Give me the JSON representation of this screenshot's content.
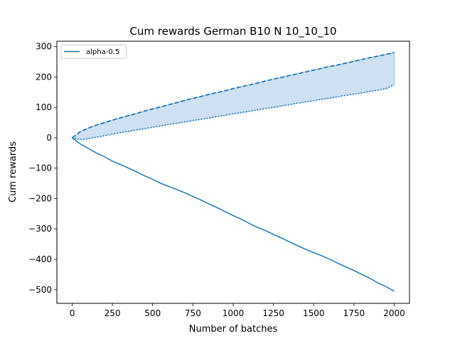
{
  "chart_data": {
    "type": "line",
    "title": "Cum rewards German B10 N 10_10_10",
    "xlabel": "Number of batches",
    "ylabel": "Cum rewards",
    "xlim": [
      -95,
      2095
    ],
    "ylim": [
      -545,
      318
    ],
    "xticks": [
      0,
      250,
      500,
      750,
      1000,
      1250,
      1500,
      1750,
      2000
    ],
    "yticks": [
      -500,
      -400,
      -300,
      -200,
      -100,
      0,
      100,
      200,
      300
    ],
    "grid": false,
    "legend_position": "top-left",
    "color": "#1f77b4",
    "fill_color": "#c6dbef",
    "series": [
      {
        "name": "alpha-0.5",
        "style": "solid",
        "x": [
          0,
          50,
          100,
          150,
          200,
          250,
          300,
          350,
          400,
          450,
          500,
          550,
          600,
          650,
          700,
          750,
          800,
          850,
          900,
          950,
          1000,
          1050,
          1100,
          1150,
          1200,
          1250,
          1300,
          1350,
          1400,
          1450,
          1500,
          1550,
          1600,
          1650,
          1700,
          1750,
          1800,
          1850,
          1900,
          1950,
          2000
        ],
        "values": [
          0,
          -20,
          -35,
          -50,
          -62,
          -77,
          -88,
          -100,
          -112,
          -125,
          -137,
          -150,
          -160,
          -170,
          -181,
          -193,
          -205,
          -218,
          -230,
          -243,
          -256,
          -268,
          -282,
          -295,
          -305,
          -318,
          -330,
          -343,
          -355,
          -367,
          -378,
          -388,
          -400,
          -413,
          -425,
          -437,
          -450,
          -463,
          -478,
          -490,
          -505
        ]
      },
      {
        "style": "dashed",
        "x": [
          0,
          50,
          100,
          150,
          200,
          250,
          300,
          350,
          400,
          450,
          500,
          550,
          600,
          650,
          700,
          750,
          800,
          850,
          900,
          950,
          1000,
          1050,
          1100,
          1150,
          1200,
          1250,
          1300,
          1350,
          1400,
          1450,
          1500,
          1550,
          1600,
          1650,
          1700,
          1750,
          1800,
          1850,
          1900,
          1950,
          2000
        ],
        "values": [
          0,
          20,
          32,
          42,
          50,
          58,
          66,
          73,
          80,
          88,
          95,
          102,
          109,
          116,
          123,
          130,
          136,
          143,
          149,
          155,
          162,
          168,
          174,
          180,
          187,
          193,
          199,
          205,
          211,
          217,
          223,
          229,
          235,
          240,
          246,
          252,
          258,
          264,
          269,
          275,
          281
        ]
      },
      {
        "style": "dotted",
        "x": [
          0,
          50,
          100,
          150,
          200,
          250,
          300,
          350,
          400,
          450,
          500,
          550,
          600,
          650,
          700,
          750,
          800,
          850,
          900,
          950,
          1000,
          1050,
          1100,
          1150,
          1200,
          1250,
          1300,
          1350,
          1400,
          1450,
          1500,
          1550,
          1600,
          1650,
          1700,
          1750,
          1800,
          1850,
          1900,
          1950,
          2000
        ],
        "values": [
          0,
          -6,
          -3,
          2,
          7,
          12,
          17,
          21,
          26,
          30,
          35,
          39,
          44,
          48,
          52,
          57,
          61,
          65,
          70,
          74,
          79,
          83,
          87,
          92,
          96,
          100,
          105,
          109,
          114,
          118,
          122,
          127,
          131,
          135,
          140,
          144,
          148,
          153,
          157,
          162,
          175
        ]
      }
    ]
  }
}
